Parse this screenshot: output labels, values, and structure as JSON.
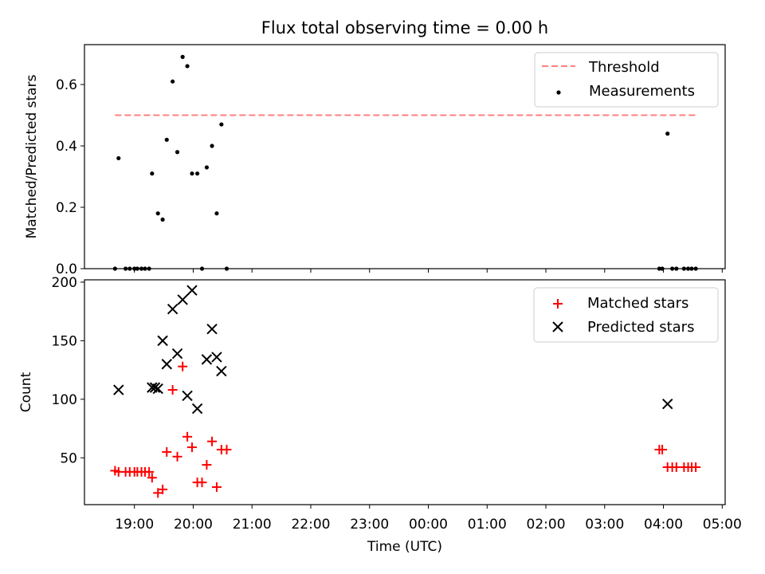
{
  "title": "Flux total observing time = 0.00 h",
  "chart_data": [
    {
      "type": "scatter",
      "ylabel": "Matched/Predicted stars",
      "ylim": [
        0,
        0.73
      ],
      "yticks": [
        0.0,
        0.2,
        0.4,
        0.6
      ],
      "ytick_labels": [
        "0.0",
        "0.2",
        "0.4",
        "0.6"
      ],
      "legend_position": "top-right",
      "legend": [
        "Threshold",
        "Measurements"
      ],
      "threshold": {
        "name": "Threshold",
        "value": 0.5,
        "x_start": 18.67,
        "x_end": 28.58,
        "color": "#ff7f7f",
        "style": "dashed"
      },
      "series": [
        {
          "name": "Measurements",
          "color": "#000000",
          "marker": "dot",
          "x": [
            18.67,
            18.73,
            18.85,
            18.92,
            19.0,
            19.05,
            19.12,
            19.18,
            19.25,
            19.3,
            19.4,
            19.48,
            19.55,
            19.65,
            19.73,
            19.82,
            19.9,
            19.98,
            20.07,
            20.15,
            20.23,
            20.32,
            20.4,
            20.48,
            20.57,
            27.93,
            27.98,
            28.07,
            28.15,
            28.22,
            28.35,
            28.42,
            28.48,
            28.55
          ],
          "y": [
            0.0,
            0.36,
            0.0,
            0.0,
            0.0,
            0.0,
            0.0,
            0.0,
            0.0,
            0.31,
            0.18,
            0.16,
            0.42,
            0.61,
            0.38,
            0.69,
            0.66,
            0.31,
            0.31,
            0.0,
            0.33,
            0.4,
            0.18,
            0.47,
            0.0,
            0.0,
            0.0,
            0.44,
            0.0,
            0.0,
            0.0,
            0.0,
            0.0,
            0.0
          ]
        }
      ]
    },
    {
      "type": "scatter",
      "xlabel": "Time (UTC)",
      "ylabel": "Count",
      "xlim": [
        18.15,
        29.05
      ],
      "ylim": [
        10,
        202
      ],
      "xticks": [
        19,
        20,
        21,
        22,
        23,
        24,
        25,
        26,
        27,
        28,
        29
      ],
      "xtick_labels": [
        "19:00",
        "20:00",
        "21:00",
        "22:00",
        "23:00",
        "00:00",
        "01:00",
        "02:00",
        "03:00",
        "04:00",
        "05:00"
      ],
      "yticks": [
        50,
        100,
        150,
        200
      ],
      "ytick_labels": [
        "50",
        "100",
        "150",
        "200"
      ],
      "legend_position": "top-right",
      "legend": [
        "Matched stars",
        "Predicted stars"
      ],
      "series": [
        {
          "name": "Matched stars",
          "color": "#ff0000",
          "marker": "plus",
          "x": [
            18.67,
            18.73,
            18.85,
            18.92,
            19.0,
            19.05,
            19.12,
            19.18,
            19.25,
            19.3,
            19.4,
            19.48,
            19.55,
            19.65,
            19.73,
            19.82,
            19.9,
            19.98,
            20.07,
            20.15,
            20.23,
            20.32,
            20.4,
            20.48,
            20.57,
            27.93,
            27.98,
            28.07,
            28.15,
            28.22,
            28.35,
            28.42,
            28.48,
            28.55
          ],
          "y": [
            39,
            38,
            38,
            38,
            38,
            38,
            38,
            38,
            38,
            33,
            20,
            23,
            55,
            108,
            51,
            128,
            68,
            59,
            29,
            29,
            44,
            64,
            25,
            57,
            57,
            57,
            57,
            42,
            42,
            42,
            42,
            42,
            42,
            42
          ]
        },
        {
          "name": "Predicted stars",
          "color": "#000000",
          "marker": "x",
          "x": [
            18.73,
            19.3,
            19.35,
            19.4,
            19.48,
            19.55,
            19.65,
            19.73,
            19.82,
            19.9,
            19.98,
            20.07,
            20.23,
            20.32,
            20.4,
            20.48,
            28.07
          ],
          "y": [
            108,
            110,
            110,
            109,
            150,
            130,
            177,
            139,
            185,
            103,
            193,
            92,
            134,
            160,
            136,
            124,
            96
          ]
        }
      ]
    }
  ]
}
